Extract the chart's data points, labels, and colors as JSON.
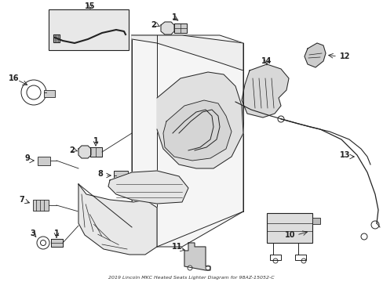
{
  "title": "2019 Lincoln MKC Heated Seats Lighter Diagram for 98AZ-15052-C",
  "background_color": "#ffffff",
  "figure_width": 4.89,
  "figure_height": 3.6,
  "dpi": 100
}
